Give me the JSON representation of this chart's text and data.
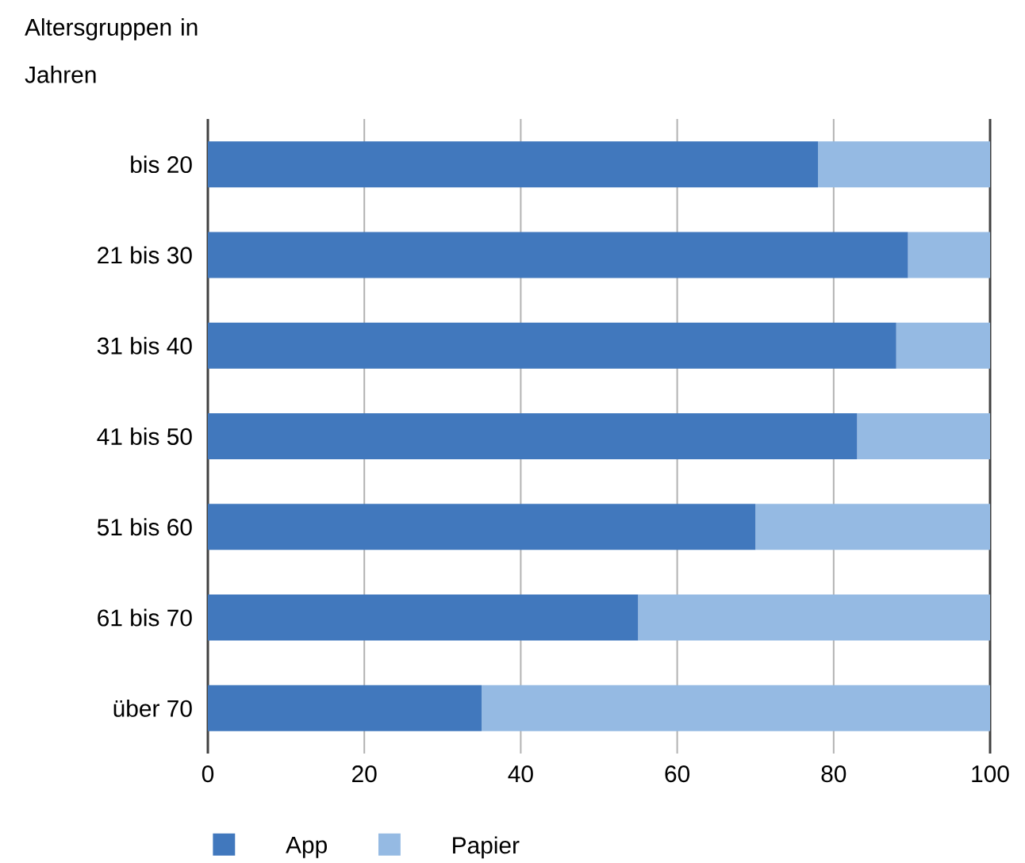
{
  "chart_data": {
    "type": "bar",
    "orientation": "horizontal",
    "stacked": true,
    "ylabel": "Altersgruppen in Jahren",
    "categories": [
      "bis 20",
      "21 bis 30",
      "31 bis 40",
      "41 bis 50",
      "51 bis 60",
      "61 bis 70",
      "über 70"
    ],
    "series": [
      {
        "name": "App",
        "color": "#4178bd",
        "values": [
          78,
          89.5,
          88,
          83,
          70,
          55,
          35
        ]
      },
      {
        "name": "Papier",
        "color": "#95bae3",
        "values": [
          22,
          10.5,
          12,
          17,
          30,
          45,
          65
        ]
      }
    ],
    "xlim": [
      0,
      100
    ],
    "xticks": [
      0,
      20,
      40,
      60,
      80,
      100
    ],
    "grid": "x",
    "legend": "bottom"
  }
}
